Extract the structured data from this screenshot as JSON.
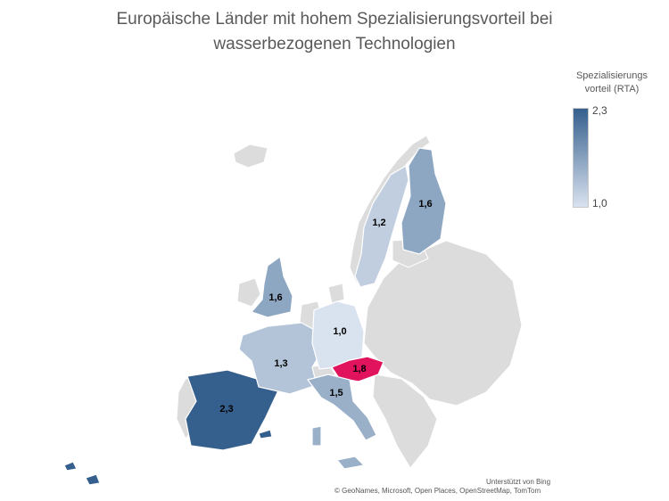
{
  "title_line1": "Europäische Länder mit hohem Spezialisierungsvorteil bei",
  "title_line2": "wasserbezogenen Technologien",
  "legend": {
    "title_line1": "Spezialisierungs",
    "title_line2": "vorteil (RTA)",
    "max_label": "2,3",
    "min_label": "1,0",
    "color_max": "#355f8d",
    "color_min": "#d9e2ef"
  },
  "highlight_color": "#e0135c",
  "no_data_color": "#dcdcdc",
  "countries": [
    {
      "name": "Spain",
      "value": 2.3,
      "label": "2,3"
    },
    {
      "name": "Austria",
      "value": 1.8,
      "label": "1,8",
      "highlight": true
    },
    {
      "name": "Finland",
      "value": 1.6,
      "label": "1,6"
    },
    {
      "name": "United Kingdom",
      "value": 1.6,
      "label": "1,6"
    },
    {
      "name": "Italy",
      "value": 1.5,
      "label": "1,5"
    },
    {
      "name": "France",
      "value": 1.3,
      "label": "1,3"
    },
    {
      "name": "Sweden",
      "value": 1.2,
      "label": "1,2"
    },
    {
      "name": "Germany",
      "value": 1.0,
      "label": "1,0"
    }
  ],
  "attribution_line1": "Unterstützt von Bing",
  "attribution_line2": "© GeoNames, Microsoft, Open Places, OpenStreetMap, TomTom"
}
